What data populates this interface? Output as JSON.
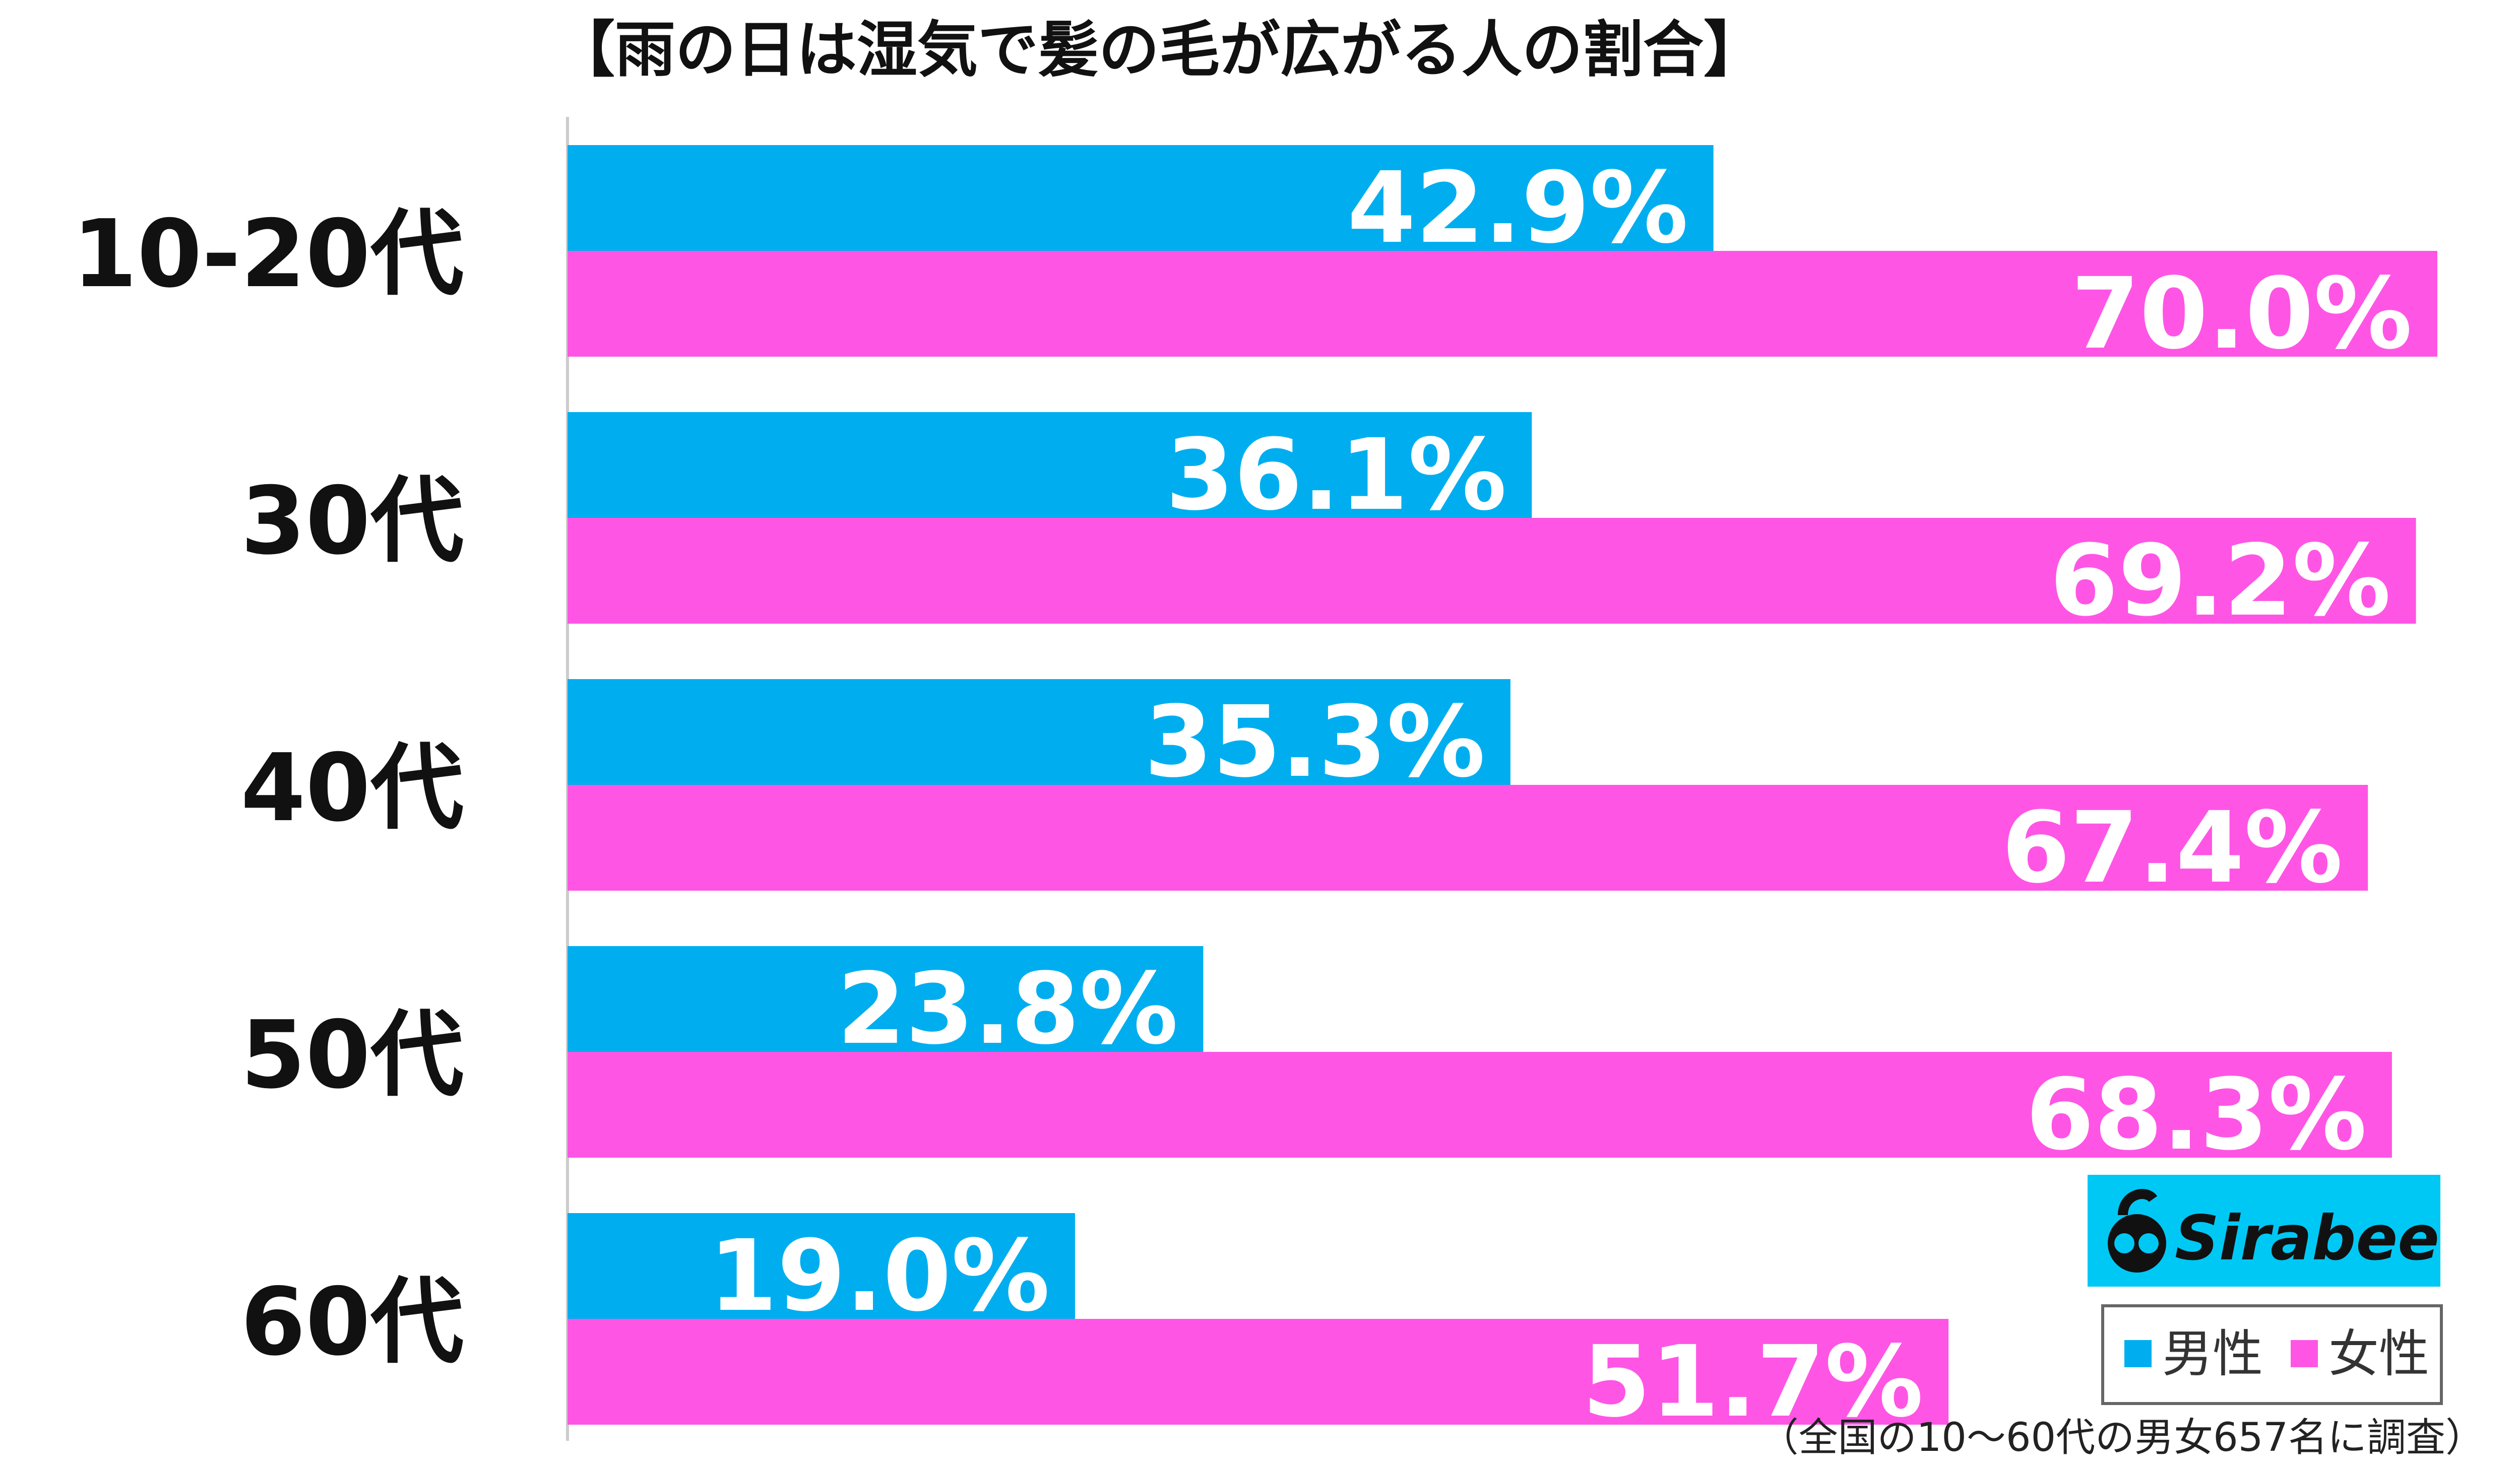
{
  "chart_data": {
    "type": "bar",
    "orientation": "horizontal",
    "title": "【雨の日は湿気で髪の毛が広がる人の割合】",
    "categories": [
      "10-20代",
      "30代",
      "40代",
      "50代",
      "60代"
    ],
    "series": [
      {
        "name": "男性",
        "color": "#00aeef",
        "values": [
          42.9,
          36.1,
          35.3,
          23.8,
          19.0
        ],
        "labels": [
          "42.9%",
          "36.1%",
          "35.3%",
          "23.8%",
          "19.0%"
        ]
      },
      {
        "name": "女性",
        "color": "#ff55e5",
        "values": [
          70.0,
          69.2,
          67.4,
          68.3,
          51.7
        ],
        "labels": [
          "70.0%",
          "69.2%",
          "67.4%",
          "68.3%",
          "51.7%"
        ]
      }
    ],
    "xlim": [
      0,
      70
    ],
    "grid": false,
    "legend_position": "bottom-right",
    "footnote": "（全国の10〜60代の男女657名に調査）"
  },
  "brand": {
    "name": "Sirabee",
    "bg_color": "#00c8f5"
  }
}
